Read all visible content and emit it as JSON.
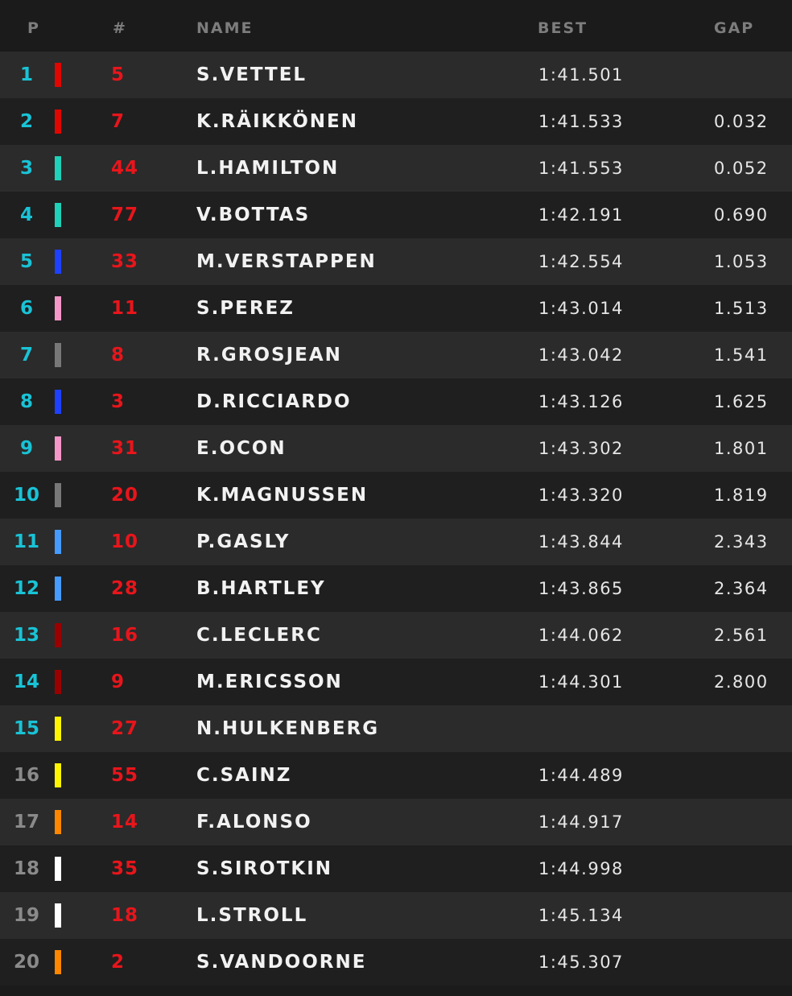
{
  "header": {
    "pos": "P",
    "num": "#",
    "name": "NAME",
    "best": "BEST",
    "gap": "GAP"
  },
  "colors": {
    "ferrari": "#e10600",
    "mercedes": "#1fd1b8",
    "redbull": "#1e41ff",
    "force_india": "#f596c8",
    "haas": "#787878",
    "toro_rosso": "#469bff",
    "sauber": "#9b0000",
    "renault": "#fff500",
    "mclaren": "#ff8700",
    "williams": "#ffffff"
  },
  "rows": [
    {
      "pos": "1",
      "num": "5",
      "name": "S.VETTEL",
      "best": "1:41.501",
      "gap": "",
      "team": "ferrari"
    },
    {
      "pos": "2",
      "num": "7",
      "name": "K.RÄIKKÖNEN",
      "best": "1:41.533",
      "gap": "0.032",
      "team": "ferrari"
    },
    {
      "pos": "3",
      "num": "44",
      "name": "L.HAMILTON",
      "best": "1:41.553",
      "gap": "0.052",
      "team": "mercedes"
    },
    {
      "pos": "4",
      "num": "77",
      "name": "V.BOTTAS",
      "best": "1:42.191",
      "gap": "0.690",
      "team": "mercedes"
    },
    {
      "pos": "5",
      "num": "33",
      "name": "M.VERSTAPPEN",
      "best": "1:42.554",
      "gap": "1.053",
      "team": "redbull"
    },
    {
      "pos": "6",
      "num": "11",
      "name": "S.PEREZ",
      "best": "1:43.014",
      "gap": "1.513",
      "team": "force_india"
    },
    {
      "pos": "7",
      "num": "8",
      "name": "R.GROSJEAN",
      "best": "1:43.042",
      "gap": "1.541",
      "team": "haas"
    },
    {
      "pos": "8",
      "num": "3",
      "name": "D.RICCIARDO",
      "best": "1:43.126",
      "gap": "1.625",
      "team": "redbull"
    },
    {
      "pos": "9",
      "num": "31",
      "name": "E.OCON",
      "best": "1:43.302",
      "gap": "1.801",
      "team": "force_india"
    },
    {
      "pos": "10",
      "num": "20",
      "name": "K.MAGNUSSEN",
      "best": "1:43.320",
      "gap": "1.819",
      "team": "haas"
    },
    {
      "pos": "11",
      "num": "10",
      "name": "P.GASLY",
      "best": "1:43.844",
      "gap": "2.343",
      "team": "toro_rosso"
    },
    {
      "pos": "12",
      "num": "28",
      "name": "B.HARTLEY",
      "best": "1:43.865",
      "gap": "2.364",
      "team": "toro_rosso"
    },
    {
      "pos": "13",
      "num": "16",
      "name": "C.LECLERC",
      "best": "1:44.062",
      "gap": "2.561",
      "team": "sauber"
    },
    {
      "pos": "14",
      "num": "9",
      "name": "M.ERICSSON",
      "best": "1:44.301",
      "gap": "2.800",
      "team": "sauber"
    },
    {
      "pos": "15",
      "num": "27",
      "name": "N.HULKENBERG",
      "best": "",
      "gap": "",
      "team": "renault"
    },
    {
      "pos": "16",
      "num": "55",
      "name": "C.SAINZ",
      "best": "1:44.489",
      "gap": "",
      "team": "renault",
      "out": true
    },
    {
      "pos": "17",
      "num": "14",
      "name": "F.ALONSO",
      "best": "1:44.917",
      "gap": "",
      "team": "mclaren",
      "out": true
    },
    {
      "pos": "18",
      "num": "35",
      "name": "S.SIROTKIN",
      "best": "1:44.998",
      "gap": "",
      "team": "williams",
      "out": true
    },
    {
      "pos": "19",
      "num": "18",
      "name": "L.STROLL",
      "best": "1:45.134",
      "gap": "",
      "team": "williams",
      "out": true
    },
    {
      "pos": "20",
      "num": "2",
      "name": "S.VANDOORNE",
      "best": "1:45.307",
      "gap": "",
      "team": "mclaren",
      "out": true
    }
  ]
}
